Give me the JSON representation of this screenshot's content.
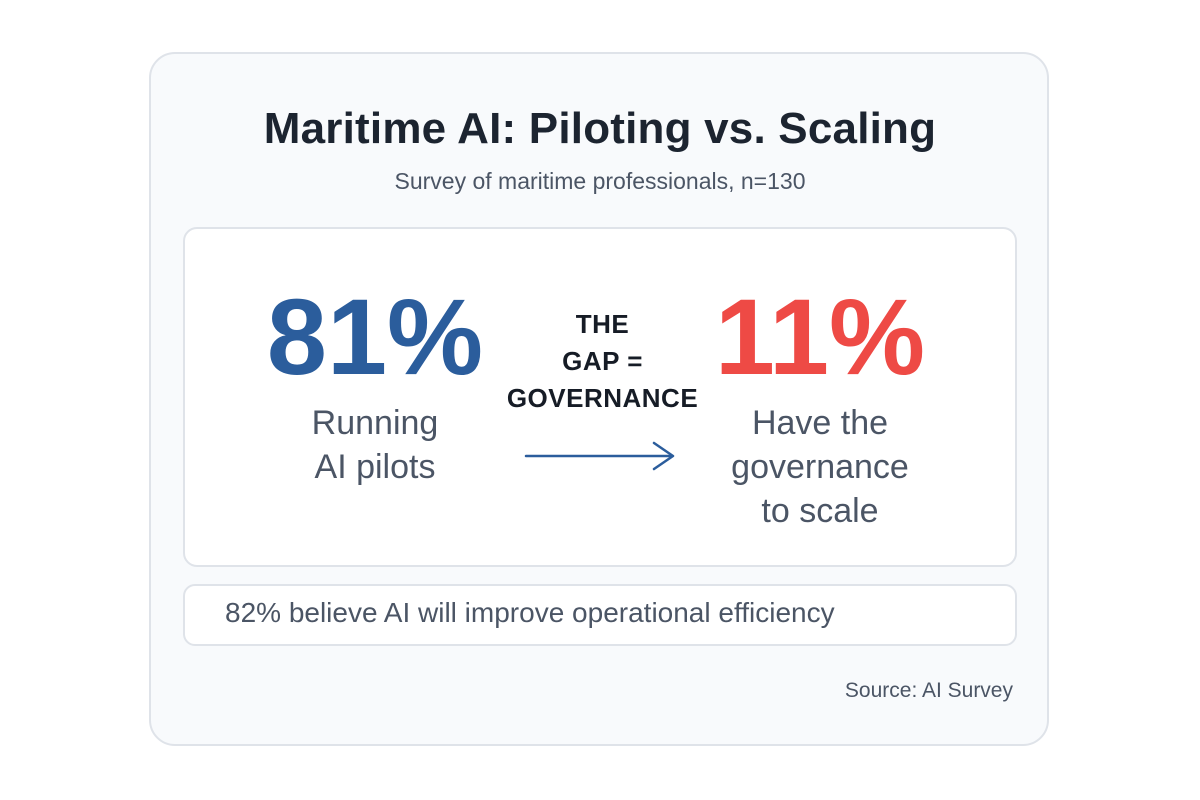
{
  "chart_data": {
    "type": "table",
    "title": "Maritime AI: Piloting vs. Scaling",
    "subtitle": "Survey of maritime professionals, n=130",
    "stats": [
      {
        "value": "81%",
        "label_lines": [
          "Running",
          "AI pilots"
        ],
        "color": "#2b5d9c"
      },
      {
        "value": "11%",
        "label_lines": [
          "Have the",
          "governance",
          "to scale"
        ],
        "color": "#ee4a45"
      }
    ],
    "gap_label_lines": [
      "THE",
      "GAP =",
      "GOVERNANCE"
    ],
    "footnote": "82% believe AI will improve operational efficiency",
    "source": "Source: AI Survey"
  }
}
